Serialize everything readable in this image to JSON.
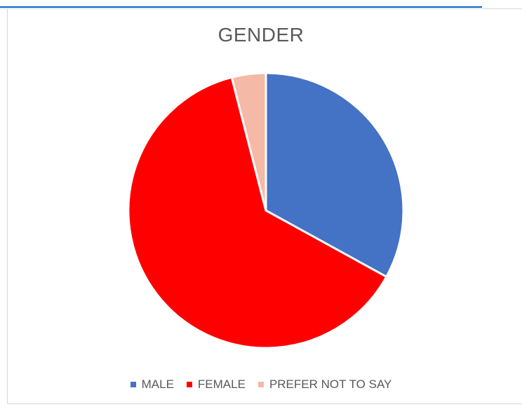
{
  "chart_data": {
    "type": "pie",
    "title": "GENDER",
    "categories": [
      "MALE",
      "FEMALE",
      "PREFER NOT TO SAY"
    ],
    "values": [
      33,
      63,
      4
    ],
    "colors": [
      "#4472c4",
      "#ff0000",
      "#f4b9a7"
    ],
    "legend_placement": "bottom"
  }
}
